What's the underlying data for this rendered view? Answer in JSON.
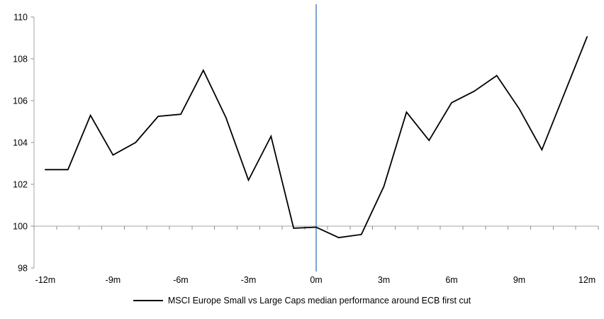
{
  "chart_data": {
    "type": "line",
    "title": "",
    "xlabel": "",
    "ylabel": "",
    "x_months": [
      -12,
      -11,
      -10,
      -9,
      -8,
      -7,
      -6,
      -5,
      -4,
      -3,
      -2,
      -1,
      0,
      1,
      2,
      3,
      4,
      5,
      6,
      7,
      8,
      9,
      10,
      11,
      12
    ],
    "series": [
      {
        "name": "MSCI Europe Small vs Large Caps median performance around ECB first cut",
        "color": "#000000",
        "values": [
          102.7,
          102.7,
          105.3,
          103.4,
          104.0,
          105.25,
          105.35,
          107.45,
          105.2,
          102.2,
          104.3,
          99.9,
          99.95,
          99.45,
          99.6,
          101.9,
          105.45,
          104.1,
          105.9,
          106.45,
          107.2,
          105.6,
          103.65,
          106.35,
          109.05
        ]
      }
    ],
    "xtick_labels": [
      "-12m",
      "-9m",
      "-6m",
      "-3m",
      "0m",
      "3m",
      "6m",
      "9m",
      "12m"
    ],
    "ytick_labels": [
      "98",
      "100",
      "102",
      "104",
      "106",
      "108",
      "110"
    ],
    "yticks": [
      98,
      100,
      102,
      104,
      106,
      108,
      110
    ],
    "ylim": [
      98,
      110
    ],
    "x_axis_cross_value": 100,
    "event_line_at_month": 0,
    "grid": false,
    "legend_position": "bottom-center",
    "colors": {
      "series_line": "#000000",
      "event_line": "#7ca5d2",
      "axis": "#a6a6a6",
      "tick": "#8c8c8c",
      "text": "#000000",
      "background": "#ffffff"
    }
  },
  "legend": {
    "label": "MSCI Europe Small vs Large Caps median performance around ECB first cut"
  }
}
